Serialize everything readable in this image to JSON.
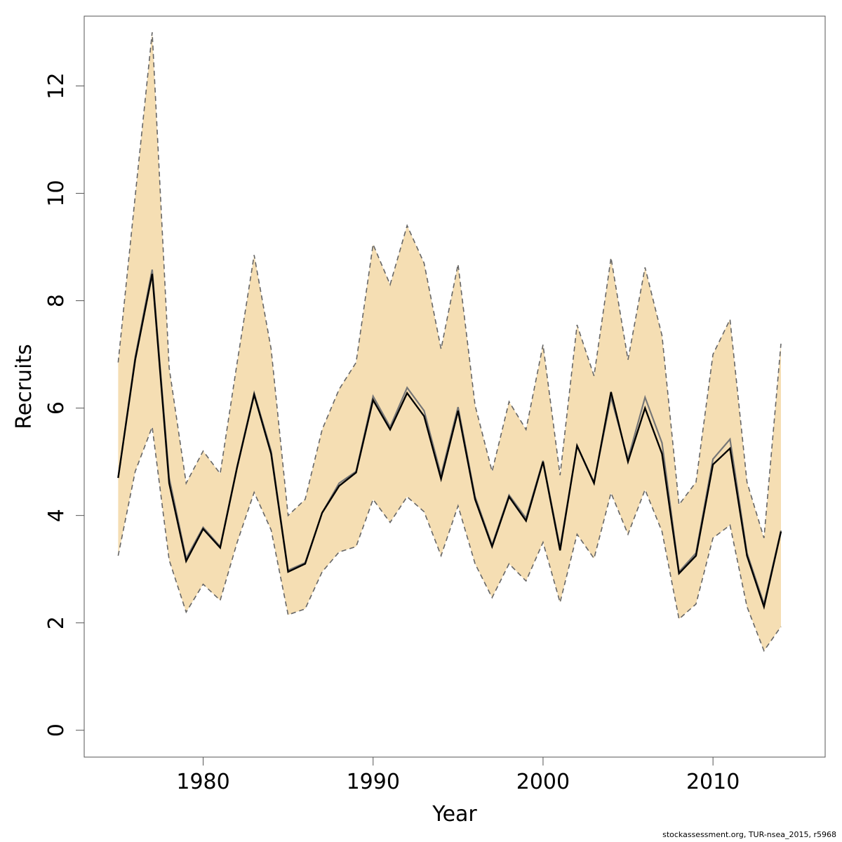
{
  "chart_data": {
    "type": "line",
    "xlabel": "Year",
    "ylabel": "Recruits",
    "xlim": [
      1973,
      2016.6
    ],
    "ylim": [
      -0.5,
      13.3
    ],
    "xticks": [
      1980,
      1990,
      2000,
      2010
    ],
    "yticks": [
      0,
      2,
      4,
      6,
      8,
      10,
      12
    ],
    "grid": false,
    "legend": "none",
    "colors": {
      "band": "#f5deb3",
      "bounds": "#666666",
      "estimate": "#000000",
      "secondary": "#777777"
    },
    "x": [
      1975,
      1976,
      1977,
      1978,
      1979,
      1980,
      1981,
      1982,
      1983,
      1984,
      1985,
      1986,
      1987,
      1988,
      1989,
      1990,
      1991,
      1992,
      1993,
      1994,
      1995,
      1996,
      1997,
      1998,
      1999,
      2000,
      2001,
      2002,
      2003,
      2004,
      2005,
      2006,
      2007,
      2008,
      2009,
      2010,
      2011,
      2012,
      2013,
      2014
    ],
    "series": [
      {
        "values": [
          4.7,
          6.9,
          8.5,
          4.6,
          3.15,
          3.75,
          3.4,
          4.9,
          6.25,
          5.15,
          2.95,
          3.1,
          4.05,
          4.55,
          4.8,
          6.15,
          5.6,
          6.28,
          5.85,
          4.68,
          5.95,
          4.3,
          3.42,
          4.35,
          3.9,
          5.0,
          3.35,
          5.3,
          4.6,
          6.3,
          5.0,
          6.0,
          5.15,
          2.92,
          3.25,
          4.95,
          5.25,
          3.25,
          2.3,
          3.7
        ]
      },
      {
        "values": [
          4.7,
          6.95,
          8.58,
          4.7,
          3.2,
          3.78,
          3.42,
          4.92,
          6.28,
          5.2,
          2.98,
          3.12,
          4.05,
          4.6,
          4.82,
          6.22,
          5.65,
          6.38,
          5.95,
          4.75,
          6.02,
          4.35,
          3.45,
          4.38,
          3.95,
          5.02,
          3.4,
          5.3,
          4.62,
          6.2,
          5.05,
          6.2,
          5.35,
          2.95,
          3.3,
          5.05,
          5.42,
          3.3,
          2.35,
          3.72
        ]
      },
      {
        "values": [
          3.25,
          4.82,
          5.65,
          3.17,
          2.2,
          2.72,
          2.42,
          3.5,
          4.43,
          3.73,
          2.15,
          2.26,
          2.95,
          3.32,
          3.42,
          4.3,
          3.87,
          4.35,
          4.07,
          3.25,
          4.18,
          3.1,
          2.47,
          3.1,
          2.78,
          3.5,
          2.38,
          3.65,
          3.2,
          4.42,
          3.65,
          4.48,
          3.7,
          2.07,
          2.35,
          3.58,
          3.82,
          2.3,
          1.48,
          1.93
        ]
      },
      {
        "values": [
          6.85,
          9.95,
          13.0,
          6.75,
          4.6,
          5.2,
          4.78,
          6.85,
          8.85,
          7.1,
          4.0,
          4.3,
          5.6,
          6.35,
          6.85,
          9.05,
          8.3,
          9.4,
          8.7,
          7.1,
          8.68,
          6.05,
          4.82,
          6.12,
          5.6,
          7.18,
          4.75,
          7.55,
          6.6,
          8.8,
          6.9,
          8.62,
          7.35,
          4.2,
          4.62,
          7.0,
          7.65,
          4.62,
          3.58,
          7.2
        ]
      }
    ]
  },
  "footer": "stockassessment.org, TUR-nsea_2015, r5968"
}
